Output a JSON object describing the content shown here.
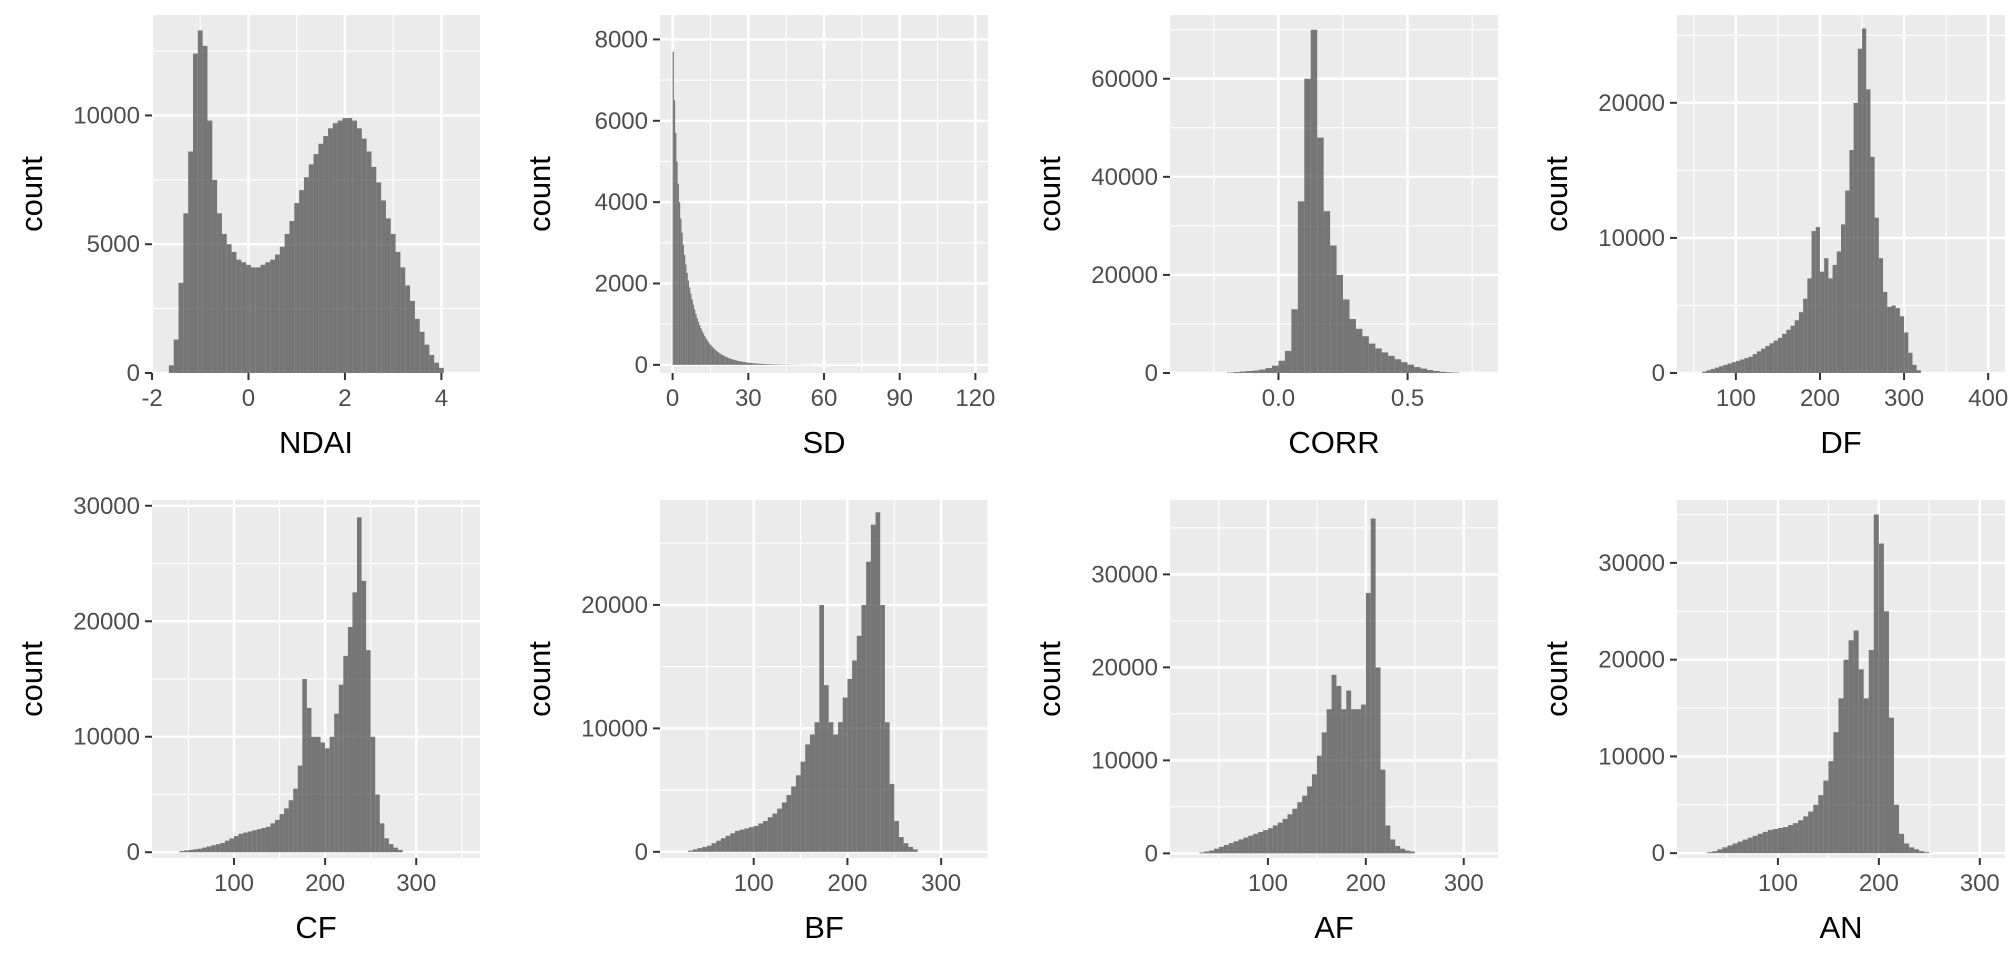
{
  "chart_data": [
    {
      "type": "bar",
      "xlabel": "NDAI",
      "ylabel": "count",
      "xlim": [
        -2.0,
        4.8
      ],
      "ylim": [
        0,
        13900
      ],
      "xticks": [
        -2,
        0,
        2,
        4
      ],
      "xtick_labels": [
        "-2",
        "0",
        "2",
        "4"
      ],
      "yticks": [
        0,
        5000,
        10000
      ],
      "ytick_labels": [
        "0",
        "5000",
        "10000"
      ],
      "grid": true,
      "bin_start": -1.65,
      "bin_width": 0.1,
      "counts": [
        300,
        1300,
        3500,
        6200,
        8600,
        12400,
        13300,
        12700,
        9800,
        7500,
        6200,
        5400,
        5000,
        4700,
        4400,
        4300,
        4200,
        4100,
        4100,
        4200,
        4300,
        4400,
        4600,
        4900,
        5400,
        5900,
        6600,
        7100,
        7600,
        8100,
        8500,
        8900,
        9200,
        9500,
        9700,
        9800,
        9900,
        9900,
        9800,
        9500,
        9100,
        8600,
        8000,
        7400,
        6700,
        6000,
        5400,
        4700,
        4100,
        3400,
        2800,
        2100,
        1600,
        1100,
        700,
        400,
        200
      ]
    },
    {
      "type": "bar",
      "xlabel": "SD",
      "ylabel": "count",
      "xlim": [
        -5,
        125
      ],
      "ylim": [
        -200,
        8600
      ],
      "xticks": [
        0,
        30,
        60,
        90,
        120
      ],
      "xtick_labels": [
        "0",
        "30",
        "60",
        "90",
        "120"
      ],
      "yticks": [
        0,
        2000,
        4000,
        6000,
        8000
      ],
      "ytick_labels": [
        "0",
        "2000",
        "4000",
        "6000",
        "8000"
      ],
      "grid": true,
      "bin_start": 0,
      "bin_width": 0.5,
      "counts": [
        7700,
        6500,
        5700,
        5000,
        4450,
        4000,
        3600,
        3250,
        2950,
        2700,
        2470,
        2260,
        2070,
        1900,
        1750,
        1610,
        1480,
        1360,
        1250,
        1150,
        1060,
        980,
        900,
        830,
        770,
        710,
        655,
        605,
        560,
        520,
        480,
        445,
        412,
        382,
        354,
        328,
        304,
        282,
        262,
        243,
        226,
        210,
        195,
        181,
        168,
        156,
        145,
        135,
        126,
        117,
        109,
        101,
        94,
        88,
        82,
        76,
        71,
        66,
        61,
        57,
        53,
        49,
        46,
        43,
        40,
        37,
        34,
        32,
        30,
        28,
        26,
        24,
        22,
        21,
        19,
        18,
        17,
        16,
        15,
        14,
        13,
        12,
        11,
        10,
        10,
        9,
        8,
        8,
        7,
        7,
        6,
        6,
        5,
        5,
        5,
        4,
        4,
        4,
        3,
        3,
        3,
        3,
        3,
        2,
        2,
        2,
        2,
        2,
        2,
        2,
        1,
        1,
        1,
        1,
        1,
        1,
        1,
        1,
        1,
        1,
        1,
        1,
        1,
        1,
        1,
        1,
        1,
        1,
        1,
        1,
        1,
        1,
        1,
        1,
        1,
        1,
        1,
        1,
        1,
        1,
        1,
        1,
        1,
        1,
        1,
        1,
        1,
        1,
        1
      ]
    },
    {
      "type": "bar",
      "xlabel": "CORR",
      "ylabel": "count",
      "xlim": [
        -0.42,
        0.85
      ],
      "ylim": [
        0,
        73000
      ],
      "xticks": [
        0.0,
        0.5
      ],
      "xtick_labels": [
        "0.0",
        "0.5"
      ],
      "yticks": [
        0,
        20000,
        40000,
        60000
      ],
      "ytick_labels": [
        "0",
        "20000",
        "40000",
        "60000"
      ],
      "grid": true,
      "bin_start": -0.2,
      "bin_width": 0.025,
      "counts": [
        100,
        200,
        300,
        400,
        500,
        700,
        1000,
        1500,
        2500,
        4500,
        13000,
        35000,
        60000,
        70000,
        48000,
        33000,
        26000,
        20000,
        15000,
        11000,
        9000,
        7500,
        6000,
        5000,
        4200,
        3500,
        2800,
        2200,
        1700,
        1200,
        900,
        600,
        400,
        250,
        150,
        100
      ]
    },
    {
      "type": "bar",
      "xlabel": "DF",
      "ylabel": "count",
      "xlim": [
        30,
        420
      ],
      "ylim": [
        0,
        26500
      ],
      "xticks": [
        100,
        200,
        300,
        400
      ],
      "xtick_labels": [
        "100",
        "200",
        "300",
        "400"
      ],
      "yticks": [
        0,
        10000,
        20000
      ],
      "ytick_labels": [
        "0",
        "10000",
        "20000"
      ],
      "grid": true,
      "bin_start": 60,
      "bin_width": 5,
      "counts": [
        100,
        200,
        300,
        400,
        500,
        600,
        700,
        800,
        900,
        1000,
        1100,
        1200,
        1400,
        1600,
        1800,
        2000,
        2200,
        2400,
        2600,
        2900,
        3200,
        3500,
        3900,
        4500,
        5500,
        7000,
        10500,
        10800,
        7500,
        8500,
        7000,
        8000,
        9000,
        11000,
        13500,
        16500,
        20000,
        24000,
        25500,
        21000,
        16000,
        11500,
        8500,
        6000,
        4900,
        5000,
        4800,
        4200,
        3000,
        1500,
        600,
        200
      ]
    },
    {
      "type": "bar",
      "xlabel": "CF",
      "ylabel": "count",
      "xlim": [
        10,
        370
      ],
      "ylim": [
        -500,
        30500
      ],
      "xticks": [
        100,
        200,
        300
      ],
      "xtick_labels": [
        "100",
        "200",
        "300"
      ],
      "yticks": [
        0,
        10000,
        20000,
        30000
      ],
      "ytick_labels": [
        "0",
        "10000",
        "20000",
        "30000"
      ],
      "grid": true,
      "bin_start": 40,
      "bin_width": 5,
      "counts": [
        100,
        150,
        200,
        250,
        300,
        400,
        500,
        600,
        700,
        800,
        1000,
        1200,
        1400,
        1600,
        1700,
        1800,
        1900,
        2000,
        2100,
        2200,
        2500,
        2800,
        3300,
        3800,
        4500,
        5500,
        7500,
        15000,
        12500,
        10000,
        10000,
        9500,
        9000,
        10000,
        12000,
        14500,
        17000,
        19500,
        22500,
        29000,
        23500,
        17500,
        10000,
        5000,
        2500,
        1200,
        700,
        400,
        200
      ]
    },
    {
      "type": "bar",
      "xlabel": "BF",
      "ylabel": "count",
      "xlim": [
        0,
        350
      ],
      "ylim": [
        -500,
        28500
      ],
      "xticks": [
        100,
        200,
        300
      ],
      "xtick_labels": [
        "100",
        "200",
        "300"
      ],
      "yticks": [
        0,
        10000,
        20000
      ],
      "ytick_labels": [
        "0",
        "10000",
        "20000"
      ],
      "grid": true,
      "bin_start": 30,
      "bin_width": 5,
      "counts": [
        100,
        200,
        300,
        400,
        500,
        700,
        900,
        1100,
        1300,
        1500,
        1700,
        1800,
        1900,
        2000,
        2100,
        2300,
        2500,
        2800,
        3100,
        3500,
        4000,
        4600,
        5300,
        6200,
        7300,
        8700,
        9500,
        10500,
        20000,
        13500,
        10500,
        9500,
        10500,
        12500,
        14000,
        15500,
        17500,
        20000,
        23500,
        26500,
        27500,
        20000,
        10500,
        5500,
        2500,
        1200,
        700,
        400,
        200
      ]
    },
    {
      "type": "bar",
      "xlabel": "AF",
      "ylabel": "count",
      "xlim": [
        0,
        335
      ],
      "ylim": [
        -500,
        38000
      ],
      "xticks": [
        100,
        200,
        300
      ],
      "xtick_labels": [
        "100",
        "200",
        "300"
      ],
      "yticks": [
        0,
        10000,
        20000,
        30000
      ],
      "ytick_labels": [
        "0",
        "10000",
        "20000",
        "30000"
      ],
      "grid": true,
      "bin_start": 30,
      "bin_width": 5,
      "counts": [
        100,
        200,
        300,
        500,
        700,
        900,
        1100,
        1300,
        1500,
        1700,
        1900,
        2100,
        2300,
        2500,
        2700,
        3000,
        3300,
        3700,
        4200,
        4800,
        5500,
        6200,
        7200,
        8500,
        10500,
        13000,
        15500,
        19200,
        18000,
        15500,
        17500,
        15500,
        15500,
        16000,
        28000,
        36000,
        20000,
        9000,
        3000,
        1500,
        800,
        500,
        300,
        200
      ]
    },
    {
      "type": "bar",
      "xlabel": "AN",
      "ylabel": "count",
      "xlim": [
        0,
        325
      ],
      "ylim": [
        -500,
        36500
      ],
      "xticks": [
        100,
        200,
        300
      ],
      "xtick_labels": [
        "100",
        "200",
        "300"
      ],
      "yticks": [
        0,
        10000,
        20000,
        30000
      ],
      "ytick_labels": [
        "0",
        "10000",
        "20000",
        "30000"
      ],
      "grid": true,
      "bin_start": 30,
      "bin_width": 5,
      "counts": [
        100,
        200,
        400,
        600,
        800,
        1000,
        1200,
        1400,
        1600,
        1800,
        2000,
        2200,
        2400,
        2500,
        2600,
        2700,
        2900,
        3100,
        3400,
        3800,
        4300,
        5000,
        6000,
        7500,
        9500,
        12500,
        16000,
        20000,
        22000,
        23000,
        19000,
        16000,
        21000,
        35000,
        32000,
        25000,
        14000,
        5000,
        2000,
        1000,
        600,
        400,
        200,
        100
      ]
    }
  ]
}
